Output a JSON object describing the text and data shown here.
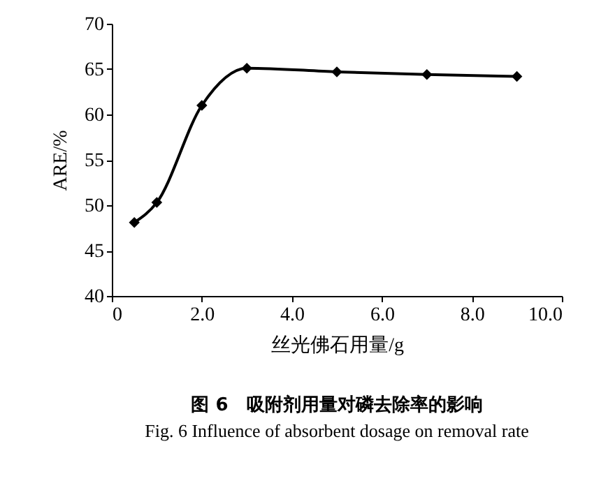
{
  "chart_data": {
    "type": "line",
    "xlabel": "丝光佛石用量/g",
    "ylabel": "ARE/%",
    "x": [
      0.5,
      1,
      2,
      3,
      5,
      7,
      9
    ],
    "series": [
      {
        "color": "#000000",
        "values": [
          48.1,
          50.3,
          61,
          65.1,
          64.7,
          64.4,
          64.2
        ]
      }
    ],
    "xlim": [
      0,
      10
    ],
    "xticks": [
      0,
      {
        "value": 2,
        "label": "2.0"
      },
      {
        "value": 4,
        "label": "4.0"
      },
      {
        "value": 6,
        "label": "6.0"
      },
      {
        "value": 8,
        "label": "8.0"
      },
      {
        "value": 10,
        "label": "10.0"
      }
    ],
    "ylim": [
      40,
      70
    ],
    "yticks": [
      40,
      45,
      50,
      55,
      60,
      65,
      70
    ],
    "marker": "diamond",
    "line_style": "solid",
    "annotations": [
      "图 6　吸附剂用量对磷去除率的影响",
      "Fig. 6 Influence of absorbent dosage on removal rate"
    ]
  }
}
